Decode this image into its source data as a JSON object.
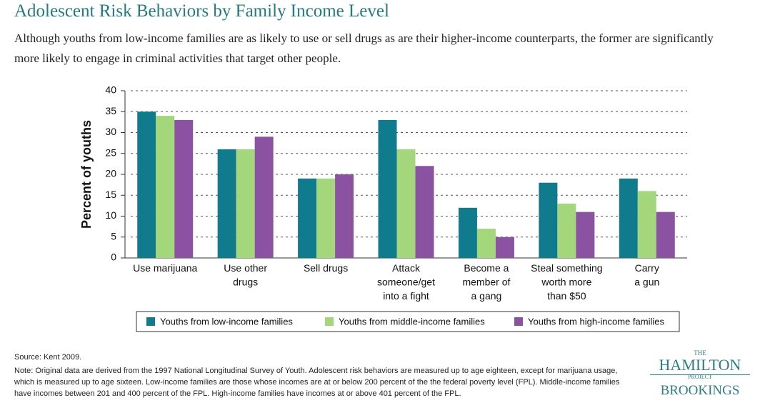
{
  "chart_data": {
    "type": "bar",
    "title": "Adolescent Risk Behaviors by Family Income Level",
    "subtitle": "Although youths from low-income families are as likely to use or sell drugs as are their higher-income counterparts, the former are significantly more likely to engage in criminal activities that target other people.",
    "y_label": "Percent of youths",
    "categories": [
      "Use marijuana",
      "Use other\ndrugs",
      "Sell drugs",
      "Attack\nsomeone/get\ninto a fight",
      "Become a\nmember of\na gang",
      "Steal something\nworth more\nthan $50",
      "Carry\na gun"
    ],
    "series": [
      {
        "name": "Youths from low-income families",
        "color": "#0f7b8d",
        "values": [
          35,
          26,
          19,
          33,
          12,
          18,
          19
        ]
      },
      {
        "name": "Youths from middle-income families",
        "color": "#a4d67c",
        "values": [
          34,
          26,
          19,
          26,
          7,
          13,
          16
        ]
      },
      {
        "name": "Youths from high-income families",
        "color": "#8b52a2",
        "values": [
          33,
          29,
          20,
          22,
          5,
          11,
          11
        ]
      }
    ],
    "ylim": [
      0,
      40
    ],
    "yticks": [
      0,
      5,
      10,
      15,
      20,
      25,
      30,
      35,
      40
    ],
    "grid": true,
    "source": "Source: Kent 2009.",
    "note": "Note: Original data are derived from the 1997 National Longitudinal Survey of Youth. Adolescent risk behaviors are measured up to age eighteen, except for marijuana usage, which is measured up to age sixteen. Low-income families are those whose incomes are at or below 200 percent of the the federal poverty level (FPL). Middle-income families have incomes between 201 and 400 percent of the FPL. High-income families have incomes at or above 401 percent of the FPL."
  },
  "logo": {
    "the": "THE",
    "hamilton": "HAMILTON",
    "project": "PROJECT",
    "brookings": "BROOKINGS"
  }
}
